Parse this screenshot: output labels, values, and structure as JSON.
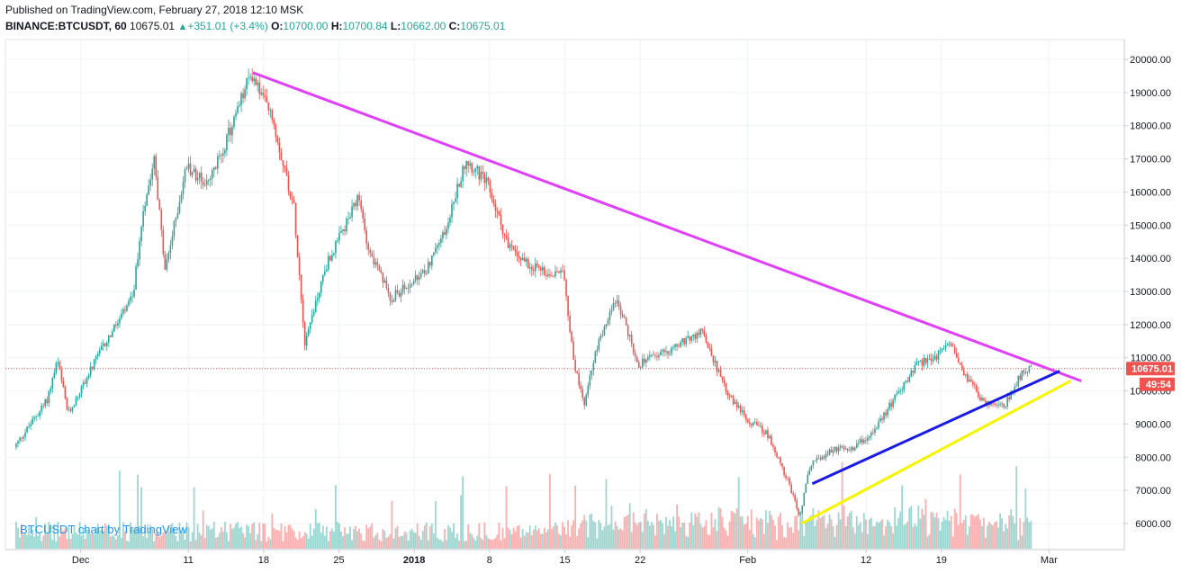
{
  "header": {
    "published": "Published on TradingView.com, February 27, 2018 12:10 MSK",
    "symbol": "BINANCE:BTCUSDT, 60",
    "last": "10675.01",
    "change": "+351.01 (+3.4%)",
    "o_label": "O:",
    "o_value": "10700.00",
    "h_label": "H:",
    "h_value": "10700.84",
    "l_label": "L:",
    "l_value": "10662.00",
    "c_label": "C:",
    "c_value": "10675.01"
  },
  "watermark": "BTCUSDT chart by TradingView",
  "chart_data": {
    "type": "candlestick",
    "x_ticks": [
      "Dec",
      "11",
      "18",
      "25",
      "2018",
      "8",
      "15",
      "22",
      "Feb",
      "12",
      "19",
      "Mar"
    ],
    "y_ticks": [
      "6000.00",
      "7000.00",
      "8000.00",
      "9000.00",
      "10000.00",
      "11000.00",
      "12000.00",
      "13000.00",
      "14000.00",
      "15000.00",
      "16000.00",
      "17000.00",
      "18000.00",
      "19000.00",
      "20000.00"
    ],
    "ylim": [
      5300,
      20600
    ],
    "price_series": [
      {
        "date": "2017-11-25",
        "price": 8300
      },
      {
        "date": "2017-11-28",
        "price": 9700
      },
      {
        "date": "2017-11-29",
        "price": 10900
      },
      {
        "date": "2017-11-30",
        "price": 9300
      },
      {
        "date": "2017-12-03",
        "price": 11200
      },
      {
        "date": "2017-12-06",
        "price": 12800
      },
      {
        "date": "2017-12-07",
        "price": 15500
      },
      {
        "date": "2017-12-08",
        "price": 17100
      },
      {
        "date": "2017-12-09",
        "price": 13600
      },
      {
        "date": "2017-12-11",
        "price": 16800
      },
      {
        "date": "2017-12-13",
        "price": 16200
      },
      {
        "date": "2017-12-15",
        "price": 17800
      },
      {
        "date": "2017-12-17",
        "price": 19600
      },
      {
        "date": "2017-12-19",
        "price": 18200
      },
      {
        "date": "2017-12-21",
        "price": 15500
      },
      {
        "date": "2017-12-22",
        "price": 11500
      },
      {
        "date": "2017-12-24",
        "price": 13800
      },
      {
        "date": "2017-12-27",
        "price": 15800
      },
      {
        "date": "2017-12-28",
        "price": 14200
      },
      {
        "date": "2017-12-30",
        "price": 12800
      },
      {
        "date": "2018-01-02",
        "price": 13500
      },
      {
        "date": "2018-01-04",
        "price": 14800
      },
      {
        "date": "2018-01-06",
        "price": 17000
      },
      {
        "date": "2018-01-08",
        "price": 16200
      },
      {
        "date": "2018-01-10",
        "price": 14300
      },
      {
        "date": "2018-01-12",
        "price": 13800
      },
      {
        "date": "2018-01-14",
        "price": 13500
      },
      {
        "date": "2018-01-15",
        "price": 13800
      },
      {
        "date": "2018-01-16",
        "price": 10800
      },
      {
        "date": "2018-01-17",
        "price": 9600
      },
      {
        "date": "2018-01-18",
        "price": 11200
      },
      {
        "date": "2018-01-20",
        "price": 12800
      },
      {
        "date": "2018-01-22",
        "price": 10800
      },
      {
        "date": "2018-01-24",
        "price": 11100
      },
      {
        "date": "2018-01-28",
        "price": 11800
      },
      {
        "date": "2018-01-30",
        "price": 10100
      },
      {
        "date": "2018-02-01",
        "price": 9200
      },
      {
        "date": "2018-02-03",
        "price": 8700
      },
      {
        "date": "2018-02-05",
        "price": 7200
      },
      {
        "date": "2018-02-06",
        "price": 6200
      },
      {
        "date": "2018-02-07",
        "price": 7800
      },
      {
        "date": "2018-02-09",
        "price": 8200
      },
      {
        "date": "2018-02-11",
        "price": 8300
      },
      {
        "date": "2018-02-13",
        "price": 8800
      },
      {
        "date": "2018-02-15",
        "price": 9900
      },
      {
        "date": "2018-02-17",
        "price": 10800
      },
      {
        "date": "2018-02-19",
        "price": 11100
      },
      {
        "date": "2018-02-20",
        "price": 11500
      },
      {
        "date": "2018-02-21",
        "price": 10700
      },
      {
        "date": "2018-02-23",
        "price": 9700
      },
      {
        "date": "2018-02-25",
        "price": 9500
      },
      {
        "date": "2018-02-26",
        "price": 10200
      },
      {
        "date": "2018-02-27",
        "price": 10675
      }
    ],
    "trendlines": [
      {
        "color": "#e040fb",
        "from": {
          "date": "2017-12-17",
          "price": 19600
        },
        "to": {
          "date": "2018-03-04",
          "price": 10300
        }
      },
      {
        "color": "#1a1ae6",
        "from": {
          "date": "2018-02-07",
          "price": 7200
        },
        "to": {
          "date": "2018-03-02",
          "price": 10600
        }
      },
      {
        "color": "#f5f500",
        "from": {
          "date": "2018-02-06",
          "price": 6000
        },
        "to": {
          "date": "2018-03-03",
          "price": 10300
        }
      }
    ],
    "last_price": "10675.01",
    "countdown": "49:54",
    "up_color": "#26a69a",
    "down_color": "#ef5350"
  }
}
